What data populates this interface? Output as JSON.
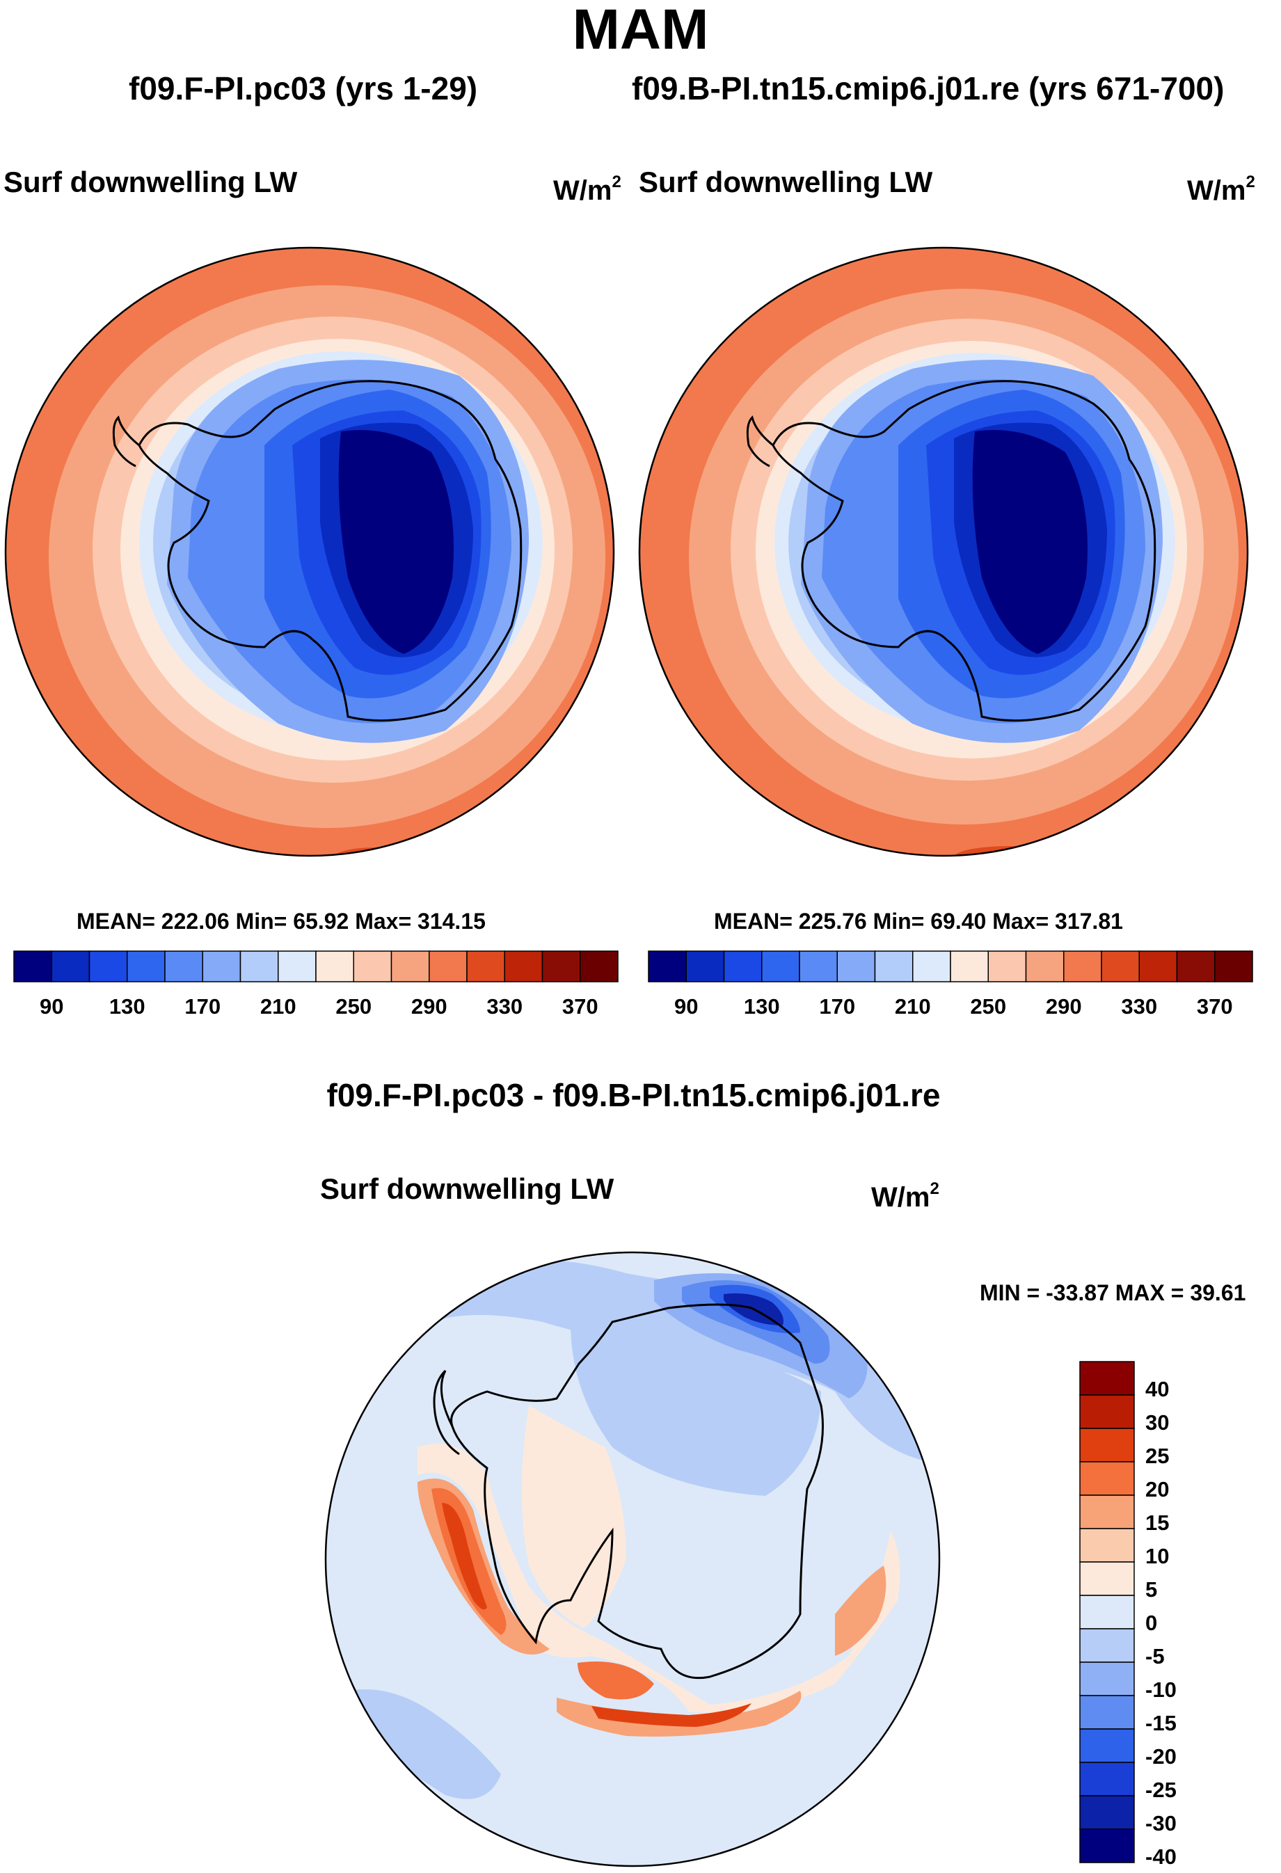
{
  "title": "MAM",
  "panels": [
    {
      "run": "f09.F-PI.pc03 (yrs 1-29)",
      "variable": "Surf downwelling LW",
      "units_base": "W/m",
      "units_exp": "2",
      "stats": "MEAN= 222.06  Min=  65.92  Max= 314.15",
      "mean": 222.06,
      "min": 65.92,
      "max": 314.15
    },
    {
      "run": "f09.B-PI.tn15.cmip6.j01.re (yrs 671-700)",
      "variable": "Surf downwelling LW",
      "units_base": "W/m",
      "units_exp": "2",
      "stats": "MEAN= 225.76  Min=  69.40  Max= 317.81",
      "mean": 225.76,
      "min": 69.4,
      "max": 317.81
    }
  ],
  "diff": {
    "title": "f09.F-PI.pc03 - f09.B-PI.tn15.cmip6.j01.re",
    "variable": "Surf downwelling LW",
    "units_base": "W/m",
    "units_exp": "2",
    "stats": "MIN = -33.87 MAX =  39.61",
    "min": -33.87,
    "max": 39.61
  },
  "chart_data": [
    {
      "type": "heatmap",
      "projection": "south-polar-stereographic",
      "title": "f09.F-PI.pc03 (yrs 1-29)",
      "variable": "Surf downwelling LW",
      "units": "W/m2",
      "colorbar_ticks": [
        "90",
        "130",
        "170",
        "210",
        "250",
        "290",
        "330",
        "370"
      ],
      "colorbar_colors": [
        "#00007f",
        "#0a2bc0",
        "#1b49e6",
        "#2f66f0",
        "#5a8af5",
        "#85aaf7",
        "#b3cdfa",
        "#ddeafc",
        "#fde9dc",
        "#fbc8af",
        "#f6a47f",
        "#f2794d",
        "#e04a1f",
        "#bd2408",
        "#8a0d05",
        "#6b0000"
      ],
      "summary": {
        "mean": 222.06,
        "min": 65.92,
        "max": 314.15
      }
    },
    {
      "type": "heatmap",
      "projection": "south-polar-stereographic",
      "title": "f09.B-PI.tn15.cmip6.j01.re (yrs 671-700)",
      "variable": "Surf downwelling LW",
      "units": "W/m2",
      "colorbar_ticks": [
        "90",
        "130",
        "170",
        "210",
        "250",
        "290",
        "330",
        "370"
      ],
      "colorbar_colors": [
        "#00007f",
        "#0a2bc0",
        "#1b49e6",
        "#2f66f0",
        "#5a8af5",
        "#85aaf7",
        "#b3cdfa",
        "#ddeafc",
        "#fde9dc",
        "#fbc8af",
        "#f6a47f",
        "#f2794d",
        "#e04a1f",
        "#bd2408",
        "#8a0d05",
        "#6b0000"
      ],
      "summary": {
        "mean": 225.76,
        "min": 69.4,
        "max": 317.81
      }
    },
    {
      "type": "heatmap",
      "projection": "south-polar-stereographic",
      "title": "f09.F-PI.pc03 - f09.B-PI.tn15.cmip6.j01.re",
      "variable": "Surf downwelling LW",
      "units": "W/m2",
      "colorbar_ticks": [
        "40",
        "30",
        "25",
        "20",
        "15",
        "10",
        "5",
        "0",
        "-5",
        "-10",
        "-15",
        "-20",
        "-25",
        "-30",
        "-40"
      ],
      "colorbar_colors": [
        "#8a0000",
        "#b91e05",
        "#e0400f",
        "#f4703c",
        "#f8a277",
        "#fbcbae",
        "#fde9dc",
        "#dde9f8",
        "#b6cdf7",
        "#8fb0f5",
        "#5f8cf0",
        "#2f62ea",
        "#1a3fd6",
        "#0c22a8",
        "#00007f"
      ],
      "summary": {
        "min": -33.87,
        "max": 39.61
      }
    }
  ]
}
